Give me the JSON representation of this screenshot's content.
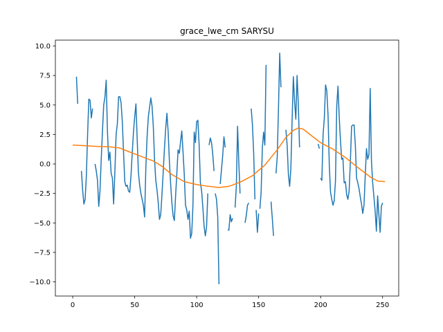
{
  "chart_data": {
    "type": "line",
    "title": "grace_lwe_cm SARYSU",
    "xlabel": "",
    "ylabel": "",
    "xlim": [
      -14,
      263
    ],
    "ylim": [
      -11.2,
      10.5
    ],
    "x_ticks": [
      0,
      50,
      100,
      150,
      200,
      250
    ],
    "y_ticks": [
      -10.0,
      -7.5,
      -5.0,
      -2.5,
      0.0,
      2.5,
      5.0,
      7.5,
      10.0
    ],
    "x_tick_labels": [
      "0",
      "50",
      "100",
      "150",
      "200",
      "250"
    ],
    "y_tick_labels": [
      "−10.0",
      "−7.5",
      "−5.0",
      "−2.5",
      "0.0",
      "2.5",
      "5.0",
      "7.5",
      "10.0"
    ],
    "grid": false,
    "series": [
      {
        "color": "#1f77b4",
        "points": [
          [
            3,
            7.4
          ],
          [
            4,
            5.1
          ],
          [
            null,
            null
          ],
          [
            7,
            -0.6
          ],
          [
            8,
            -2.2
          ],
          [
            9,
            -3.4
          ],
          [
            10,
            -3.0
          ],
          [
            11,
            -1.0
          ],
          [
            12,
            2.5
          ],
          [
            13,
            5.5
          ],
          [
            14,
            5.4
          ],
          [
            15,
            3.9
          ],
          [
            16,
            4.7
          ],
          [
            null,
            null
          ],
          [
            18,
            0.0
          ],
          [
            19,
            -0.6
          ],
          [
            20,
            -1.4
          ],
          [
            21,
            -3.6
          ],
          [
            22,
            -2.3
          ],
          [
            23,
            0.4
          ],
          [
            24,
            2.8
          ],
          [
            25,
            5.0
          ],
          [
            26,
            5.7
          ],
          [
            27,
            7.1
          ],
          [
            28,
            2.8
          ],
          [
            29,
            0.3
          ],
          [
            30,
            1.0
          ],
          [
            31,
            -0.8
          ],
          [
            32,
            -1.2
          ],
          [
            33,
            -3.4
          ],
          [
            34,
            -0.7
          ],
          [
            35,
            2.5
          ],
          [
            36,
            3.4
          ],
          [
            37,
            5.7
          ],
          [
            38,
            5.7
          ],
          [
            39,
            5.2
          ],
          [
            40,
            3.6
          ],
          [
            41,
            1.0
          ],
          [
            42,
            -1.5
          ],
          [
            43,
            -1.9
          ],
          [
            44,
            -1.8
          ],
          [
            45,
            -2.3
          ],
          [
            46,
            -2.4
          ],
          [
            47,
            -1.0
          ],
          [
            48,
            0.9
          ],
          [
            49,
            2.7
          ],
          [
            50,
            4.0
          ],
          [
            51,
            5.1
          ],
          [
            52,
            2.1
          ],
          [
            53,
            -0.7
          ],
          [
            54,
            -1.8
          ],
          [
            55,
            -2.5
          ],
          [
            56,
            -3.0
          ],
          [
            57,
            -3.5
          ],
          [
            58,
            -4.5
          ],
          [
            59,
            -0.3
          ],
          [
            60,
            2.3
          ],
          [
            61,
            4.0
          ],
          [
            62,
            4.8
          ],
          [
            63,
            5.6
          ],
          [
            64,
            4.9
          ],
          [
            65,
            3.2
          ],
          [
            66,
            0.4
          ],
          [
            67,
            -1.4
          ],
          [
            68,
            -2.2
          ],
          [
            69,
            -3.3
          ],
          [
            70,
            -4.7
          ],
          [
            71,
            -4.3
          ],
          [
            72,
            -2.6
          ],
          [
            73,
            -0.7
          ],
          [
            74,
            1.3
          ],
          [
            75,
            3.0
          ],
          [
            76,
            4.3
          ],
          [
            77,
            2.7
          ],
          [
            78,
            0.2
          ],
          [
            79,
            -1.7
          ],
          [
            80,
            -3.3
          ],
          [
            81,
            -4.4
          ],
          [
            82,
            -4.8
          ],
          [
            83,
            -2.7
          ],
          [
            84,
            -0.8
          ],
          [
            85,
            1.2
          ],
          [
            86,
            0.9
          ],
          [
            87,
            1.9
          ],
          [
            88,
            2.8
          ],
          [
            89,
            1.0
          ],
          [
            90,
            -0.9
          ],
          [
            91,
            -3.5
          ],
          [
            92,
            -3.9
          ],
          [
            93,
            -4.7
          ],
          [
            94,
            -4.0
          ],
          [
            95,
            -6.3
          ],
          [
            96,
            -5.9
          ],
          [
            97,
            -3.5
          ],
          [
            98,
            2.7
          ],
          [
            99,
            1.8
          ],
          [
            100,
            3.6
          ],
          [
            101,
            3.7
          ],
          [
            102,
            1.6
          ],
          [
            103,
            -1.6
          ],
          [
            104,
            -2.3
          ],
          [
            105,
            -3.7
          ],
          [
            106,
            -5.3
          ],
          [
            107,
            -6.1
          ],
          [
            108,
            -5.3
          ],
          [
            109,
            -2.5
          ],
          [
            null,
            null
          ],
          [
            110,
            1.6
          ],
          [
            111,
            2.2
          ],
          [
            112,
            1.8
          ],
          [
            113,
            0.8
          ],
          [
            114,
            -0.6
          ],
          [
            null,
            null
          ],
          [
            115,
            -2.5
          ],
          [
            116,
            -3.0
          ],
          [
            117,
            -4.5
          ],
          [
            118,
            -10.2
          ],
          [
            null,
            null
          ],
          [
            119,
            -1.7
          ],
          [
            120,
            -0.5
          ],
          [
            121,
            0.7
          ],
          [
            122,
            2.3
          ],
          [
            123,
            1.4
          ],
          [
            null,
            null
          ],
          [
            125,
            -5.6
          ],
          [
            126,
            -5.6
          ],
          [
            127,
            -4.3
          ],
          [
            128,
            -4.9
          ],
          [
            129,
            -4.6
          ],
          [
            null,
            null
          ],
          [
            131,
            -3.7
          ],
          [
            132,
            -1.9
          ],
          [
            133,
            3.2
          ],
          [
            134,
            0.1
          ],
          [
            135,
            -2.5
          ],
          [
            null,
            null
          ],
          [
            139,
            -5.0
          ],
          [
            140,
            -4.4
          ],
          [
            141,
            -3.5
          ],
          [
            142,
            -3.3
          ],
          [
            null,
            null
          ],
          [
            144,
            4.7
          ],
          [
            145,
            3.3
          ],
          [
            146,
            0.9
          ],
          [
            147,
            -3.0
          ],
          [
            null,
            null
          ],
          [
            148,
            -3.9
          ],
          [
            149,
            -5.8
          ],
          [
            150,
            -4.2
          ],
          [
            null,
            null
          ],
          [
            151,
            -3.8
          ],
          [
            152,
            -2.4
          ],
          [
            153,
            1.4
          ],
          [
            154,
            2.7
          ],
          [
            155,
            1.6
          ],
          [
            156,
            8.4
          ],
          [
            null,
            null
          ],
          [
            160,
            -3.2
          ],
          [
            161,
            -4.6
          ],
          [
            162,
            -6.1
          ],
          [
            null,
            null
          ],
          [
            164,
            -0.8
          ],
          [
            165,
            0.6
          ],
          [
            166,
            4.7
          ],
          [
            167,
            9.4
          ],
          [
            168,
            6.5
          ],
          [
            null,
            null
          ],
          [
            172,
            2.9
          ],
          [
            173,
            1.6
          ],
          [
            174,
            -0.9
          ],
          [
            175,
            -1.9
          ],
          [
            176,
            -0.4
          ],
          [
            177,
            3.7
          ],
          [
            178,
            7.4
          ],
          [
            179,
            5.3
          ],
          [
            180,
            3.8
          ],
          [
            181,
            7.5
          ],
          [
            182,
            5.1
          ],
          [
            183,
            1.4
          ],
          [
            null,
            null
          ],
          [
            198,
            1.7
          ],
          [
            199,
            1.3
          ],
          [
            null,
            null
          ],
          [
            200,
            -1.2
          ],
          [
            201,
            -1.4
          ],
          [
            202,
            2.5
          ],
          [
            203,
            3.9
          ],
          [
            204,
            6.7
          ],
          [
            205,
            6.2
          ],
          [
            206,
            4.1
          ],
          [
            207,
            -0.1
          ],
          [
            208,
            -2.4
          ],
          [
            209,
            -3.0
          ],
          [
            210,
            -3.5
          ],
          [
            211,
            -3.1
          ],
          [
            212,
            -1.4
          ],
          [
            213,
            4.9
          ],
          [
            214,
            6.6
          ],
          [
            215,
            4.0
          ],
          [
            216,
            2.0
          ],
          [
            217,
            0.4
          ],
          [
            218,
            0.5
          ],
          [
            219,
            -1.6
          ],
          [
            220,
            -1.5
          ],
          [
            221,
            -2.6
          ],
          [
            222,
            -3.0
          ],
          [
            223,
            -2.3
          ],
          [
            224,
            0.2
          ],
          [
            225,
            3.2
          ],
          [
            226,
            3.3
          ],
          [
            227,
            3.3
          ],
          [
            228,
            1.6
          ],
          [
            229,
            -1.2
          ],
          [
            230,
            -1.6
          ],
          [
            231,
            -2.1
          ],
          [
            232,
            -2.8
          ],
          [
            233,
            -3.4
          ],
          [
            234,
            -4.2
          ],
          [
            235,
            -3.5
          ],
          [
            236,
            -1.0
          ],
          [
            237,
            1.3
          ],
          [
            238,
            0.4
          ],
          [
            239,
            0.8
          ],
          [
            240,
            6.4
          ],
          [
            241,
            0.3
          ],
          [
            242,
            -1.6
          ],
          [
            243,
            -2.8
          ],
          [
            244,
            -4.0
          ],
          [
            245,
            -5.7
          ],
          [
            246,
            -2.7
          ],
          [
            247,
            -4.3
          ],
          [
            248,
            -5.8
          ],
          [
            249,
            -3.6
          ],
          [
            250,
            -3.3
          ]
        ]
      },
      {
        "color": "#ff7f0e",
        "points": [
          [
            0,
            1.6
          ],
          [
            10,
            1.55
          ],
          [
            20,
            1.48
          ],
          [
            30,
            1.45
          ],
          [
            38,
            1.35
          ],
          [
            45,
            1.05
          ],
          [
            55,
            0.65
          ],
          [
            65,
            0.25
          ],
          [
            72,
            -0.2
          ],
          [
            80,
            -0.9
          ],
          [
            90,
            -1.5
          ],
          [
            100,
            -1.75
          ],
          [
            110,
            -1.9
          ],
          [
            118,
            -2.0
          ],
          [
            126,
            -1.9
          ],
          [
            135,
            -1.55
          ],
          [
            145,
            -1.0
          ],
          [
            155,
            -0.1
          ],
          [
            165,
            1.2
          ],
          [
            172,
            2.25
          ],
          [
            178,
            2.85
          ],
          [
            182,
            3.05
          ],
          [
            186,
            2.95
          ],
          [
            192,
            2.45
          ],
          [
            200,
            1.8
          ],
          [
            210,
            1.25
          ],
          [
            220,
            0.55
          ],
          [
            230,
            -0.3
          ],
          [
            240,
            -1.1
          ],
          [
            246,
            -1.45
          ],
          [
            252,
            -1.5
          ]
        ]
      }
    ]
  }
}
